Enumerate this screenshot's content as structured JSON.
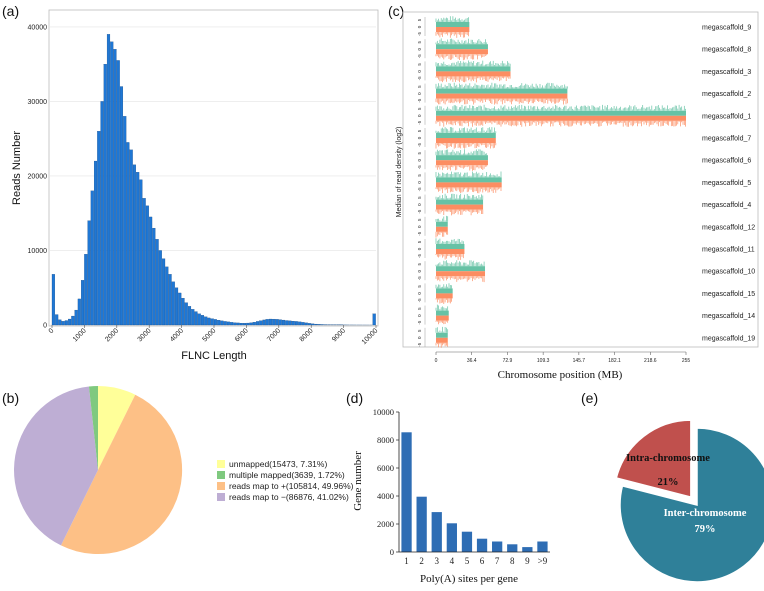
{
  "panels": {
    "a": "(a)",
    "b": "(b)",
    "c": "(c)",
    "d": "(d)",
    "e": "(e)"
  },
  "chart_data": [
    {
      "id": "a",
      "type": "bar",
      "xlabel": "FLNC Length",
      "ylabel": "Reads Number",
      "xlim": [
        0,
        10000
      ],
      "ylim": [
        0,
        42000
      ],
      "xticks": [
        "0",
        "1000",
        "2000",
        "3000",
        "4000",
        "5000",
        "6000",
        "7000",
        "8000",
        "9000",
        "10000"
      ],
      "yticks": [
        "0",
        "10000",
        "20000",
        "30000",
        "40000"
      ],
      "bin_width": 100,
      "x_start": 0,
      "values": [
        6800,
        1400,
        700,
        500,
        600,
        800,
        1200,
        2000,
        3500,
        6000,
        9500,
        14000,
        18000,
        22000,
        26000,
        30000,
        35000,
        39000,
        38000,
        37000,
        35500,
        32000,
        28000,
        24500,
        23500,
        21500,
        20500,
        19500,
        17000,
        16000,
        14500,
        13000,
        11500,
        10000,
        8900,
        7800,
        6800,
        5800,
        5000,
        4300,
        3600,
        3000,
        2500,
        2100,
        1800,
        1500,
        1300,
        1100,
        950,
        850,
        750,
        650,
        560,
        480,
        420,
        360,
        310,
        280,
        250,
        240,
        260,
        300,
        380,
        480,
        580,
        680,
        760,
        800,
        790,
        760,
        720,
        660,
        600,
        560,
        520,
        480,
        420,
        360,
        290,
        220,
        160,
        120,
        90,
        70,
        55,
        45,
        35,
        28,
        22,
        18,
        14,
        10,
        8,
        6,
        5,
        4,
        3,
        2,
        2,
        1500
      ]
    },
    {
      "id": "b",
      "type": "pie",
      "start": "12 o'clock, clockwise",
      "slices": [
        {
          "label": "unmapped(15473, 7.31%)",
          "value": 7.31,
          "color": "#FFFF99"
        },
        {
          "label": "reads map to +(105814, 49.96%)",
          "value": 49.96,
          "color": "#FDC086"
        },
        {
          "label": "reads map to −(86876, 41.02%)",
          "value": 41.02,
          "color": "#BEAED4"
        },
        {
          "label": "multiple mapped(3639, 1.72%)",
          "value": 1.72,
          "color": "#7FC97F"
        }
      ],
      "legend_order": [
        0,
        3,
        1,
        2
      ],
      "legend_position": "right"
    },
    {
      "id": "c",
      "type": "bar",
      "xlabel": "Chromosome position (MB)",
      "ylabel": "Median of read density (log2)",
      "xlim": [
        0,
        255
      ],
      "xticks": [
        "0",
        "36.4",
        "72.9",
        "109.3",
        "145.7",
        "182.1",
        "218.6",
        "255"
      ],
      "track_ticks": [
        "5",
        "0",
        "-5"
      ],
      "colors": {
        "plus": "#66C2A5",
        "minus": "#FC8D62"
      },
      "tracks": [
        {
          "name": "megascaffold_9",
          "length_mb": 34
        },
        {
          "name": "megascaffold_8",
          "length_mb": 53
        },
        {
          "name": "megascaffold_3",
          "length_mb": 76
        },
        {
          "name": "megascaffold_2",
          "length_mb": 134
        },
        {
          "name": "megascaffold_1",
          "length_mb": 255
        },
        {
          "name": "megascaffold_7",
          "length_mb": 61
        },
        {
          "name": "megascaffold_6",
          "length_mb": 53
        },
        {
          "name": "megascaffold_5",
          "length_mb": 67
        },
        {
          "name": "megascaffold_4",
          "length_mb": 48
        },
        {
          "name": "megascaffold_12",
          "length_mb": 12
        },
        {
          "name": "megascaffold_11",
          "length_mb": 29
        },
        {
          "name": "megascaffold_10",
          "length_mb": 50
        },
        {
          "name": "megascaffold_15",
          "length_mb": 17
        },
        {
          "name": "megascaffold_14",
          "length_mb": 13
        },
        {
          "name": "megascaffold_19",
          "length_mb": 12
        }
      ]
    },
    {
      "id": "d",
      "type": "bar",
      "xlabel": "Poly(A) sites per gene",
      "ylabel": "Gene number",
      "ylim": [
        0,
        10000
      ],
      "yticks": [
        "0",
        "2000",
        "4000",
        "6000",
        "8000",
        "10000"
      ],
      "categories": [
        "1",
        "2",
        "3",
        "4",
        "5",
        "6",
        "7",
        "8",
        "9",
        ">9"
      ],
      "values": [
        8550,
        3950,
        2850,
        2050,
        1450,
        950,
        750,
        550,
        350,
        750
      ],
      "color": "#2E6DB4"
    },
    {
      "id": "e",
      "type": "pie",
      "slices": [
        {
          "label": "Inter-chromosome",
          "pct": "79%",
          "value": 79,
          "color": "#2F8099"
        },
        {
          "label": "Intra-chromosome",
          "pct": "21%",
          "value": 21,
          "color": "#C0504D"
        }
      ]
    }
  ]
}
